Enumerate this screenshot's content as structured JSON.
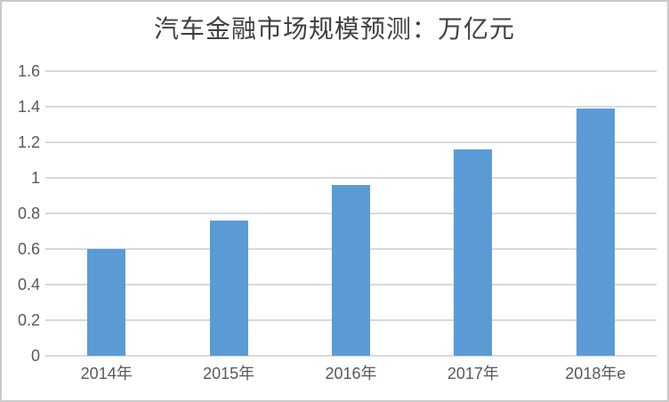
{
  "page": {
    "background_color": "#ffffff",
    "frame_border_color": "#c9c9c9"
  },
  "chart_data": {
    "type": "bar",
    "title": "汽车金融市场规模预测：万亿元",
    "categories": [
      "2014年",
      "2015年",
      "2016年",
      "2017年",
      "2018年e"
    ],
    "values": [
      0.6,
      0.76,
      0.96,
      1.16,
      1.39
    ],
    "xlabel": "",
    "ylabel": "",
    "ylim": [
      0,
      1.6
    ],
    "yticks": [
      0,
      0.2,
      0.4,
      0.6,
      0.8,
      1,
      1.2,
      1.4,
      1.6
    ],
    "ytick_labels": [
      "0",
      "0.2",
      "0.4",
      "0.6",
      "0.8",
      "1",
      "1.2",
      "1.4",
      "1.6"
    ],
    "grid": true,
    "legend": false,
    "bar_color": "#5b9bd5",
    "gridline_color": "#d9d9d9",
    "axis_label_color": "#595959",
    "title_color": "#404040"
  }
}
